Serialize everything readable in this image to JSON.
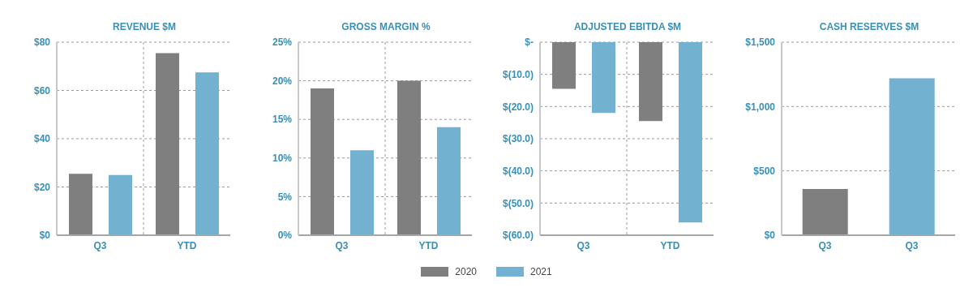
{
  "chart_data": [
    {
      "type": "bar",
      "title": "REVENUE $M",
      "categories": [
        "Q3",
        "YTD"
      ],
      "series": [
        {
          "color": "#7f7f7f",
          "values": [
            25.5,
            75.5
          ]
        },
        {
          "color": "#72b1cf",
          "values": [
            25,
            67.5
          ]
        }
      ],
      "ylim": [
        0,
        80
      ],
      "yticks": [
        {
          "value": 0,
          "label": "$0"
        },
        {
          "value": 20,
          "label": "$20"
        },
        {
          "value": 40,
          "label": "$40"
        },
        {
          "value": 60,
          "label": "$60"
        },
        {
          "value": 80,
          "label": "$80"
        }
      ],
      "grid": true
    },
    {
      "type": "bar",
      "title": "GROSS MARGIN %",
      "categories": [
        "Q3",
        "YTD"
      ],
      "series": [
        {
          "name": "2020",
          "color": "#7f7f7f",
          "values": [
            19,
            20
          ]
        },
        {
          "name": "2021",
          "color": "#72b1cf",
          "values": [
            11,
            14
          ]
        }
      ],
      "ylim": [
        0,
        25
      ],
      "yticks": [
        {
          "value": 0,
          "label": "0%"
        },
        {
          "value": 5,
          "label": "5%"
        },
        {
          "value": 10,
          "label": "10%"
        },
        {
          "value": 15,
          "label": "15%"
        },
        {
          "value": 20,
          "label": "20%"
        },
        {
          "value": 25,
          "label": "25%"
        }
      ],
      "grid": true,
      "legend": "bottom"
    },
    {
      "type": "bar",
      "title": "ADJUSTED EBITDA $M",
      "categories": [
        "Q3",
        "YTD"
      ],
      "series": [
        {
          "color": "#7f7f7f",
          "values": [
            -14.5,
            -24.5
          ]
        },
        {
          "color": "#72b1cf",
          "values": [
            -22,
            -56
          ]
        }
      ],
      "ylim": [
        -60,
        0
      ],
      "yticks": [
        {
          "value": 0,
          "label": "$-"
        },
        {
          "value": -10,
          "label": "$(10.0)"
        },
        {
          "value": -20,
          "label": "$(20.0)"
        },
        {
          "value": -30,
          "label": "$(30.0)"
        },
        {
          "value": -40,
          "label": "$(40.0)"
        },
        {
          "value": -50,
          "label": "$(50.0)"
        },
        {
          "value": -60,
          "label": "$(60.0)"
        }
      ],
      "grid": true
    },
    {
      "type": "bar",
      "title": "CASH RESERVES $M",
      "categories": [
        "Q3",
        "Q3"
      ],
      "values": [
        360,
        1220
      ],
      "colors": [
        "#7f7f7f",
        "#72b1cf"
      ],
      "ylim": [
        0,
        1500
      ],
      "yticks": [
        {
          "value": 0,
          "label": "$0"
        },
        {
          "value": 500,
          "label": "$500"
        },
        {
          "value": 1000,
          "label": "$1,000"
        },
        {
          "value": 1500,
          "label": "$1,500"
        }
      ],
      "grid": true
    }
  ]
}
